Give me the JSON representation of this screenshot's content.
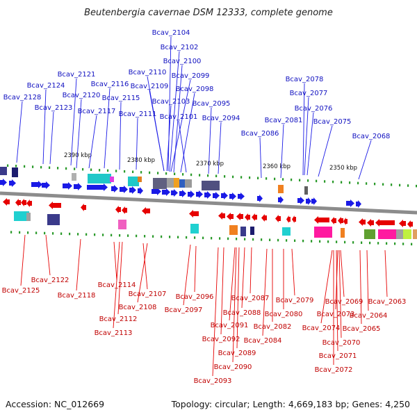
{
  "title": "Beutenbergia cavernae DSM 12333, complete genome",
  "footer": {
    "accession": "Accession: NC_012669",
    "summary": "Topology: circular; Length: 4,669,183 bp; Genes: 4,250"
  },
  "colors": {
    "forward_strand": "#1a1ae6",
    "reverse_strand": "#e60000",
    "backbone": "#8c8c8c",
    "tick": "#2a9a2a"
  },
  "scale_labels": [
    "2390 kbp",
    "2380 kbp",
    "2370 kbp",
    "2360 kbp",
    "2350 kbp"
  ],
  "top_genes": [
    "Bcav_2104",
    "Bcav_2102",
    "Bcav_2100",
    "Bcav_2121",
    "Bcav_2110",
    "Bcav_2099",
    "Bcav_2124",
    "Bcav_2116",
    "Bcav_2109",
    "Bcav_2078",
    "Bcav_2098",
    "Bcav_2128",
    "Bcav_2120",
    "Bcav_2115",
    "Bcav_2077",
    "Bcav_2103",
    "Bcav_2095",
    "Bcav_2123",
    "Bcav_2117",
    "Bcav_2111",
    "Bcav_2076",
    "Bcav_2101",
    "Bcav_2094",
    "Bcav_2081",
    "Bcav_2075",
    "Bcav_2086",
    "Bcav_2068"
  ],
  "bottom_genes": [
    "Bcav_2122",
    "Bcav_2125",
    "Bcav_2118",
    "Bcav_2114",
    "Bcav_2107",
    "Bcav_2108",
    "Bcav_2112",
    "Bcav_2113",
    "Bcav_2096",
    "Bcav_2097",
    "Bcav_2087",
    "Bcav_2079",
    "Bcav_2069",
    "Bcav_2063",
    "Bcav_2088",
    "Bcav_2080",
    "Bcav_2073",
    "Bcav_2064",
    "Bcav_2091",
    "Bcav_2082",
    "Bcav_2074",
    "Bcav_2065",
    "Bcav_2092",
    "Bcav_2084",
    "Bcav_2070",
    "Bcav_2089",
    "Bcav_2071",
    "Bcav_2090",
    "Bcav_2072",
    "Bcav_2093"
  ]
}
